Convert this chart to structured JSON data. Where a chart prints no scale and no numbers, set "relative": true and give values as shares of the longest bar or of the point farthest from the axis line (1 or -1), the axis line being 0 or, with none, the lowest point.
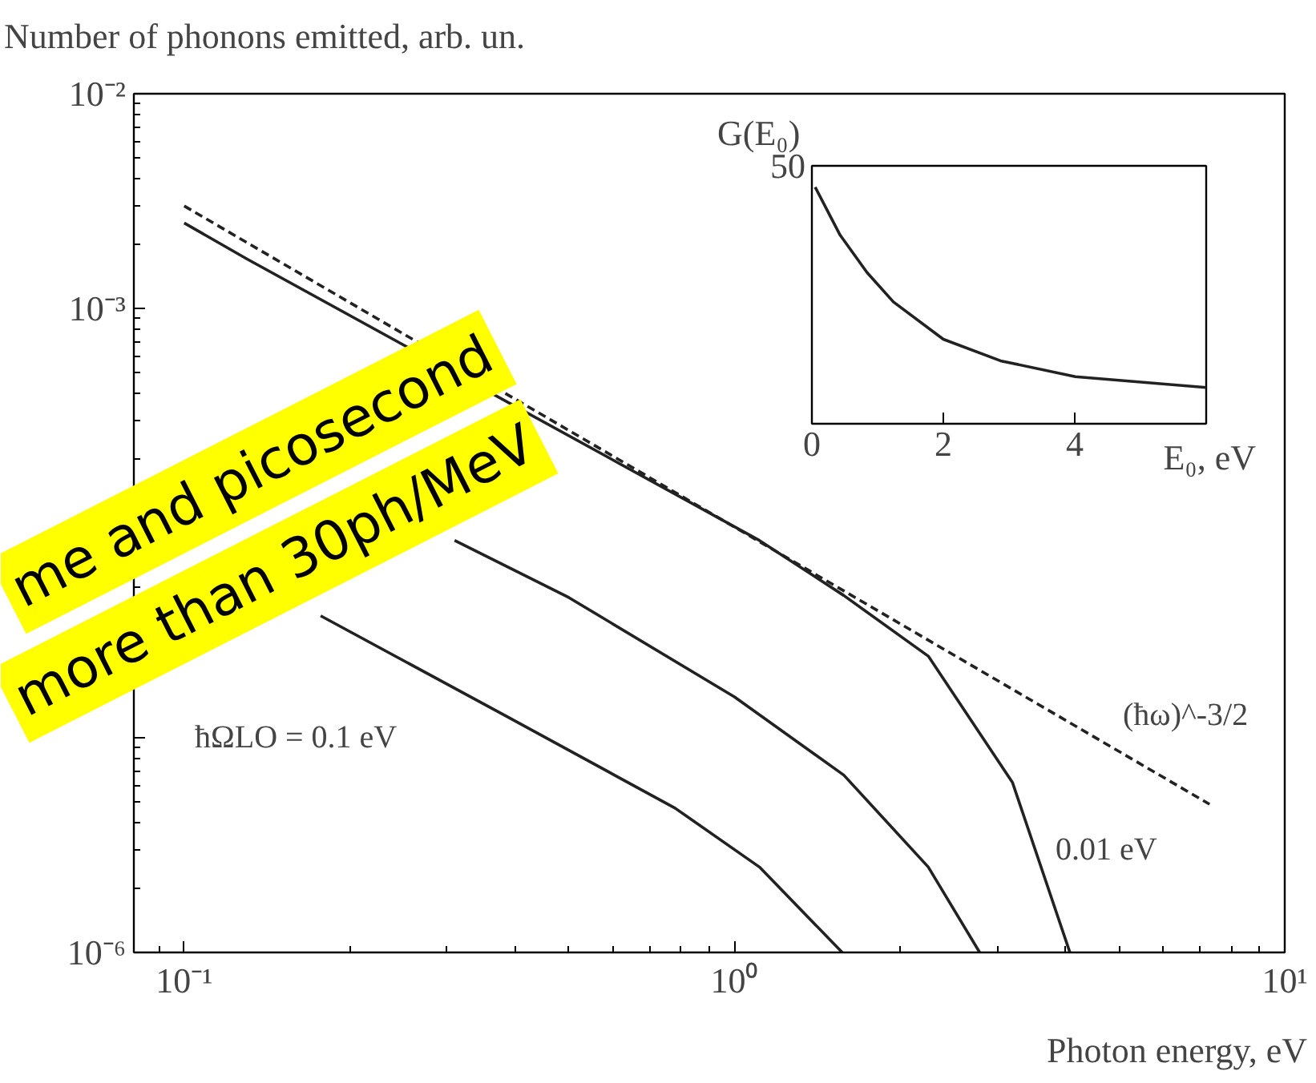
{
  "chart_data": [
    {
      "type": "line",
      "ylabel": "Number of phonons emitted, arb. un.",
      "xlabel": "Photon energy, eV",
      "log": "xy",
      "grid": false,
      "marker": "none",
      "xlim": [
        0.081,
        10
      ],
      "ylim": [
        1e-06,
        0.01
      ],
      "xticks": [
        {
          "value": 0.1,
          "label": "10⁻¹"
        },
        {
          "value": 1,
          "label": "10⁰"
        },
        {
          "value": 10,
          "label": "10¹"
        }
      ],
      "yticks": [
        {
          "value": 1e-06,
          "label": "10⁻⁶"
        },
        {
          "value": 1e-05,
          "label": null
        },
        {
          "value": 0.0001,
          "label": null
        },
        {
          "value": 0.001,
          "label": "10⁻³"
        },
        {
          "value": 0.01,
          "label": "10⁻²"
        }
      ],
      "series": [
        {
          "name": "(ħω)^-3/2",
          "color": "#222222",
          "line_style": "dashed",
          "x": [
            0.1,
            7.3
          ],
          "values": [
            0.003,
            4.9e-06
          ]
        },
        {
          "name": "0.01 eV",
          "color": "#222222",
          "line_style": "solid",
          "x": [
            0.1,
            0.13,
            1.11,
            1.58,
            2.25,
            3.2,
            4.07
          ],
          "values": [
            0.0025,
            0.0017,
            8.3e-05,
            4.6e-05,
            2.4e-05,
            6.2e-06,
            1e-06
          ]
        },
        {
          "color": "#222222",
          "line_style": "solid",
          "x": [
            0.31,
            0.5,
            1.0,
            1.58,
            2.25,
            2.79
          ],
          "values": [
            8.3e-05,
            4.5e-05,
            1.55e-05,
            6.7e-06,
            2.5e-06,
            1e-06
          ]
        },
        {
          "name": "ħΩLO = 0.1 eV",
          "color": "#222222",
          "line_style": "solid",
          "x": [
            0.177,
            0.385,
            0.78,
            1.11,
            1.57
          ],
          "values": [
            3.7e-05,
            1.26e-05,
            4.7e-06,
            2.5e-06,
            1e-06
          ]
        }
      ],
      "annotations": [
        "me and picosecond",
        "more than 30ph/MeV"
      ]
    },
    {
      "type": "line",
      "ylabel": "G(E₀)",
      "xlabel": "E₀, eV",
      "relative": true,
      "grid": false,
      "marker": "none",
      "tick_labels": "x",
      "xlim": [
        0,
        6
      ],
      "xticks": [
        0,
        2,
        4
      ],
      "x": [
        0.05,
        0.43,
        0.84,
        1.24,
        2.0,
        2.87,
        4.01,
        6.0
      ],
      "series": [
        {
          "color": "#222222",
          "values": [
            1,
            0.797,
            0.639,
            0.515,
            0.357,
            0.266,
            0.199,
            0.153
          ]
        }
      ],
      "annotations": [
        "50"
      ]
    }
  ]
}
